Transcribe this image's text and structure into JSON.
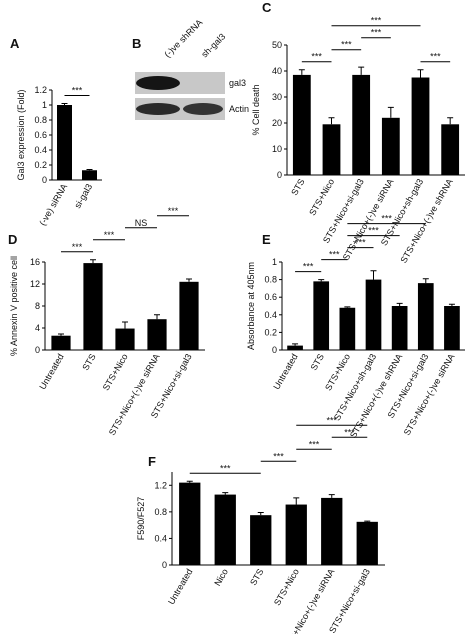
{
  "blot": {
    "panel": "B",
    "lanes": [
      "(-)ve shRNA",
      "sh-gal3"
    ],
    "bands": [
      "gal3",
      "Actin"
    ]
  },
  "chart_data": [
    {
      "panel": "A",
      "type": "bar",
      "ylabel": "Gal3 expression (Fold)",
      "categories": [
        "(-ve) siRNA",
        "si-gal3"
      ],
      "values": [
        1.0,
        0.13
      ],
      "errors": [
        0.02,
        0.01
      ],
      "color": "#000000",
      "ylim": [
        0,
        1.2
      ],
      "yticks": [
        0,
        0.2,
        0.4,
        0.6,
        0.8,
        1,
        1.2
      ],
      "annotations": [
        {
          "label": "***",
          "between": [
            "(-ve) siRNA",
            "si-gal3"
          ]
        }
      ]
    },
    {
      "panel": "C",
      "type": "bar",
      "ylabel": "% Cell death",
      "categories": [
        "STS",
        "STS+Nico",
        "STS+Nico+si-gal3",
        "STS+Nico+(-)ve siRNA",
        "STS+Nico+sh-gal3",
        "STS+Nico+(-)ve shRNA"
      ],
      "values": [
        38.5,
        19.5,
        38.5,
        22,
        37.5,
        19.5
      ],
      "errors": [
        2,
        2.5,
        3,
        4,
        3,
        2.5
      ],
      "color": "#000000",
      "ylim": [
        0,
        50
      ],
      "yticks": [
        0,
        10,
        20,
        30,
        40,
        50
      ],
      "annotations": [
        {
          "label": "***",
          "between": [
            "STS",
            "STS+Nico"
          ]
        },
        {
          "label": "***",
          "between": [
            "STS+Nico",
            "STS+Nico+si-gal3"
          ]
        },
        {
          "label": "***",
          "between": [
            "STS+Nico+si-gal3",
            "STS+Nico+(-)ve siRNA"
          ]
        },
        {
          "label": "***",
          "between": [
            "STS+Nico+sh-gal3",
            "STS+Nico+(-)ve shRNA"
          ]
        },
        {
          "label": "***",
          "between": [
            "STS+Nico",
            "STS+Nico+sh-gal3"
          ]
        }
      ]
    },
    {
      "panel": "D",
      "type": "bar",
      "ylabel": "% Annexin V positive cell",
      "categories": [
        "Untreated",
        "STS",
        "STS+Nico",
        "STS+Nico+(-)ve siRNA",
        "STS+Nico+si-gal3"
      ],
      "values": [
        2.6,
        15.8,
        3.9,
        5.6,
        12.4
      ],
      "errors": [
        0.3,
        0.6,
        1.2,
        0.8,
        0.5
      ],
      "color": "#000000",
      "ylim": [
        0,
        16
      ],
      "yticks": [
        0,
        4,
        8,
        12,
        16
      ],
      "annotations": [
        {
          "label": "***",
          "between": [
            "Untreated",
            "STS"
          ]
        },
        {
          "label": "***",
          "between": [
            "STS",
            "STS+Nico"
          ]
        },
        {
          "label": "NS",
          "between": [
            "STS+Nico",
            "STS+Nico+(-)ve siRNA"
          ]
        },
        {
          "label": "***",
          "between": [
            "STS+Nico+(-)ve siRNA",
            "STS+Nico+si-gal3"
          ]
        }
      ]
    },
    {
      "panel": "E",
      "type": "bar",
      "ylabel": "Absorbance at 405nm",
      "categories": [
        "Untreated",
        "STS",
        "STS+Nico",
        "STS+Nico+sh-gal3",
        "STS+Nico+(-)ve shRNA",
        "STS+Nico+si-gal3",
        "STS+Nico+(-)ve siRNA"
      ],
      "values": [
        0.05,
        0.78,
        0.48,
        0.8,
        0.5,
        0.76,
        0.5
      ],
      "errors": [
        0.02,
        0.02,
        0.01,
        0.1,
        0.03,
        0.05,
        0.02
      ],
      "color": "#000000",
      "ylim": [
        0,
        1
      ],
      "yticks": [
        0,
        0.2,
        0.4,
        0.6,
        0.8,
        1
      ],
      "annotations": [
        {
          "label": "***",
          "between": [
            "Untreated",
            "STS"
          ]
        },
        {
          "label": "***",
          "between": [
            "STS",
            "STS+Nico"
          ]
        },
        {
          "label": "***",
          "between": [
            "STS+Nico",
            "STS+Nico+sh-gal3"
          ]
        },
        {
          "label": "***",
          "between": [
            "STS+Nico",
            "STS+Nico+(-)ve shRNA"
          ]
        },
        {
          "label": "***",
          "between": [
            "STS+Nico",
            "STS+Nico+si-gal3"
          ]
        }
      ]
    },
    {
      "panel": "F",
      "type": "bar",
      "ylabel": "F590/F527",
      "categories": [
        "Untreated",
        "Nico",
        "STS",
        "STS+Nico",
        "STS+Nico+(-)ve siRNA",
        "STS+Nico+si-gal3"
      ],
      "values": [
        1.24,
        1.06,
        0.75,
        0.91,
        1.01,
        0.65
      ],
      "errors": [
        0.02,
        0.03,
        0.04,
        0.1,
        0.05,
        0.01
      ],
      "color": "#000000",
      "ylim": [
        0,
        1.4
      ],
      "yticks": [
        0,
        0.4,
        0.8,
        1.2
      ],
      "annotations": [
        {
          "label": "***",
          "between": [
            "Untreated",
            "STS"
          ]
        },
        {
          "label": "***",
          "between": [
            "STS",
            "STS+Nico"
          ]
        },
        {
          "label": "***",
          "between": [
            "STS+Nico",
            "STS+Nico+(-)ve siRNA"
          ]
        },
        {
          "label": "***",
          "between": [
            "STS+Nico+(-)ve siRNA",
            "STS+Nico+si-gal3"
          ]
        },
        {
          "label": "***",
          "between": [
            "STS+Nico",
            "STS+Nico+si-gal3"
          ]
        }
      ]
    }
  ]
}
